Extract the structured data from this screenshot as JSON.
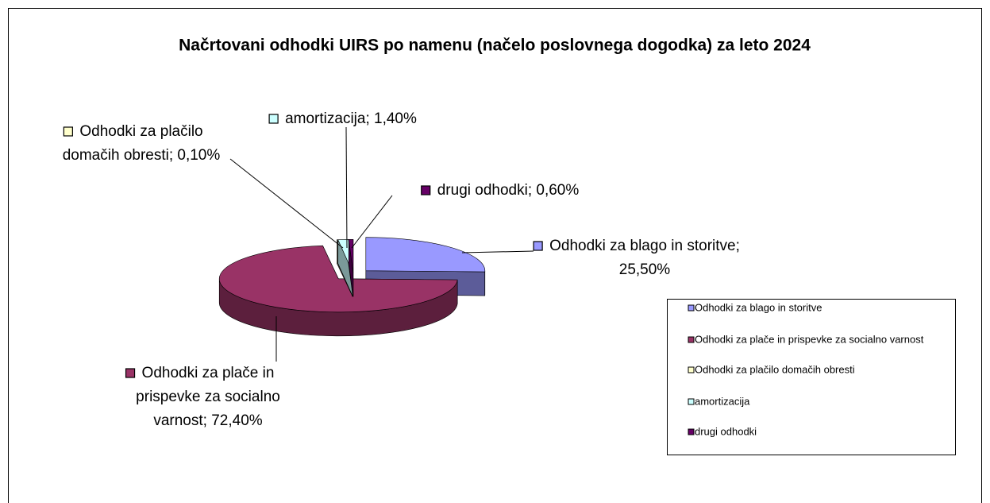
{
  "chart_data": {
    "type": "pie3d",
    "title": "Načrtovani odhodki UIRS po namenu (načelo poslovnega dogodka) za leto 2024",
    "categories": [
      "Odhodki za blago in storitve",
      "Odhodki za plače in prispevke za socialno varnost",
      "Odhodki za plačilo domačih obresti",
      "amortizacija",
      "drugi odhodki"
    ],
    "values": [
      25.5,
      72.4,
      0.1,
      1.4,
      0.6
    ],
    "value_labels": [
      "Odhodki za blago in storitve; 25,50%",
      "Odhodki za plače in prispevke za socialno varnost; 72,40%",
      "Odhodki za plačilo domačih obresti; 0,10%",
      "amortizacija; 1,40%",
      "drugi odhodki; 0,60%"
    ],
    "colors": [
      "#9999ff",
      "#993366",
      "#ffffcc",
      "#ccffff",
      "#660066"
    ],
    "legend": "right"
  }
}
